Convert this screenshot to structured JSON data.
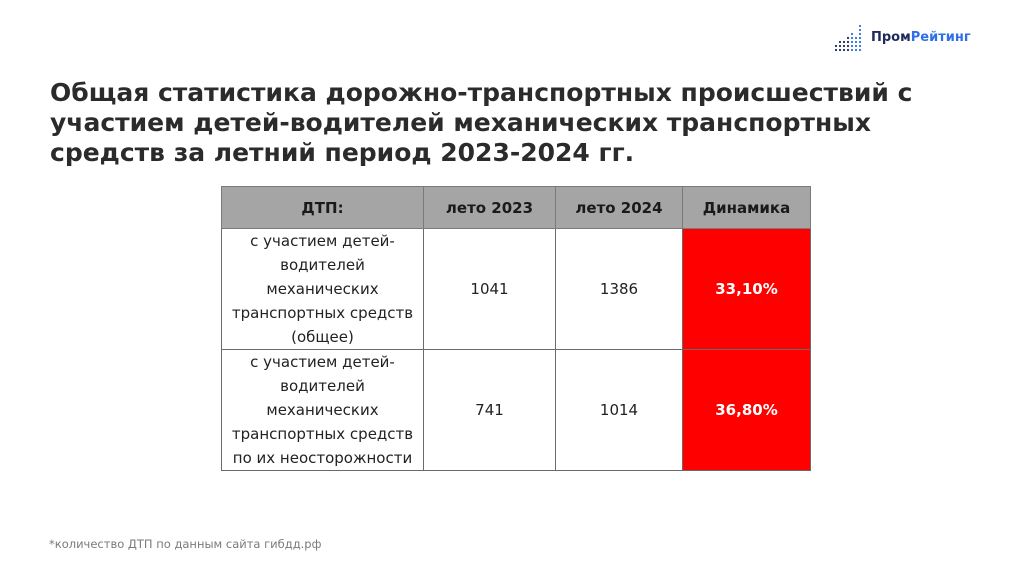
{
  "logo": {
    "icon": "bar-dots-icon",
    "text_part1": "Пром",
    "text_part2": "Рейтинг",
    "colors": {
      "dark": "#1e2a5a",
      "accent": "#2f6fe8"
    }
  },
  "title": "Общая статистика дорожно-транспортных происшествий с участием детей-водителей механических транспортных средств за летний период 2023-2024 гг.",
  "table": {
    "headers": [
      "ДТП:",
      "лето 2023",
      "лето 2024",
      "Динамика"
    ],
    "rows": [
      {
        "label": "с участием детей-водителей механических транспортных средств (общее)",
        "y2023": "1041",
        "y2024": "1386",
        "dynamics": "33,10%"
      },
      {
        "label": "с участием детей-водителей механических транспортных средств по их неосторожности",
        "y2023": "741",
        "y2024": "1014",
        "dynamics": "36,80%"
      }
    ],
    "colors": {
      "header_bg": "#a5a5a5",
      "dynamics_bg": "#ff0000"
    }
  },
  "footnote": "*количество ДТП по данным сайта гибдд.рф"
}
